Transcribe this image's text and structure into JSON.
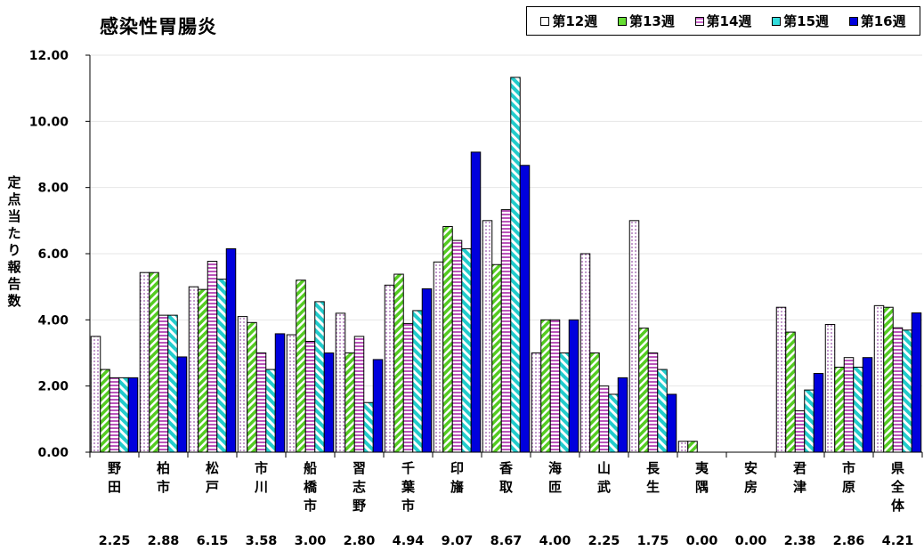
{
  "chart_data": {
    "type": "bar",
    "title": "感染性胃腸炎",
    "ylabel": "定点当たり報告数",
    "xlabel": "",
    "ylim": [
      0,
      12
    ],
    "yticks": [
      "0.00",
      "2.00",
      "4.00",
      "6.00",
      "8.00",
      "10.00",
      "12.00"
    ],
    "grid": true,
    "legend_position": "top-right",
    "categories": [
      "野田",
      "柏市",
      "松戸",
      "市川",
      "船橋市",
      "習志野",
      "千葉市",
      "印旛",
      "香取",
      "海匝",
      "山武",
      "長生",
      "夷隅",
      "安房",
      "君津",
      "市原",
      "県全体"
    ],
    "series": [
      {
        "name": "第12週",
        "color": "#ffffff",
        "pattern": "dots-purple",
        "values": [
          3.5,
          5.43,
          5.0,
          4.1,
          3.55,
          4.2,
          5.05,
          5.75,
          7.0,
          3.0,
          6.0,
          7.0,
          0.33,
          0,
          4.38,
          3.86,
          4.43
        ]
      },
      {
        "name": "第13週",
        "color": "#66dd33",
        "pattern": "green-diagonal",
        "values": [
          2.5,
          5.43,
          4.92,
          3.92,
          5.2,
          3.0,
          5.38,
          6.82,
          5.67,
          4.0,
          3.0,
          3.75,
          0.33,
          0,
          3.63,
          2.57,
          4.38
        ]
      },
      {
        "name": "第14週",
        "color": "#cc66cc",
        "pattern": "horizontal-stripes",
        "values": [
          2.25,
          4.14,
          5.77,
          3.0,
          3.35,
          3.5,
          3.89,
          6.4,
          7.33,
          4.0,
          2.0,
          3.0,
          0,
          0,
          1.25,
          2.86,
          3.76
        ]
      },
      {
        "name": "第15週",
        "color": "#33dddd",
        "pattern": "cyan-diagonal",
        "values": [
          2.25,
          4.14,
          5.23,
          2.5,
          4.55,
          1.5,
          4.28,
          6.15,
          11.33,
          3.0,
          1.75,
          2.5,
          0,
          0,
          1.88,
          2.57,
          3.69
        ]
      },
      {
        "name": "第16週",
        "color": "#0000dd",
        "pattern": "solid",
        "values": [
          2.25,
          2.88,
          6.15,
          3.58,
          3.0,
          2.8,
          4.94,
          9.07,
          8.67,
          4.0,
          2.25,
          1.75,
          0,
          0,
          2.38,
          2.86,
          4.21
        ]
      }
    ],
    "bottom_values": [
      "2.25",
      "2.88",
      "6.15",
      "3.58",
      "3.00",
      "2.80",
      "4.94",
      "9.07",
      "8.67",
      "4.00",
      "2.25",
      "1.75",
      "0.00",
      "0.00",
      "2.38",
      "2.86",
      "4.21"
    ]
  }
}
